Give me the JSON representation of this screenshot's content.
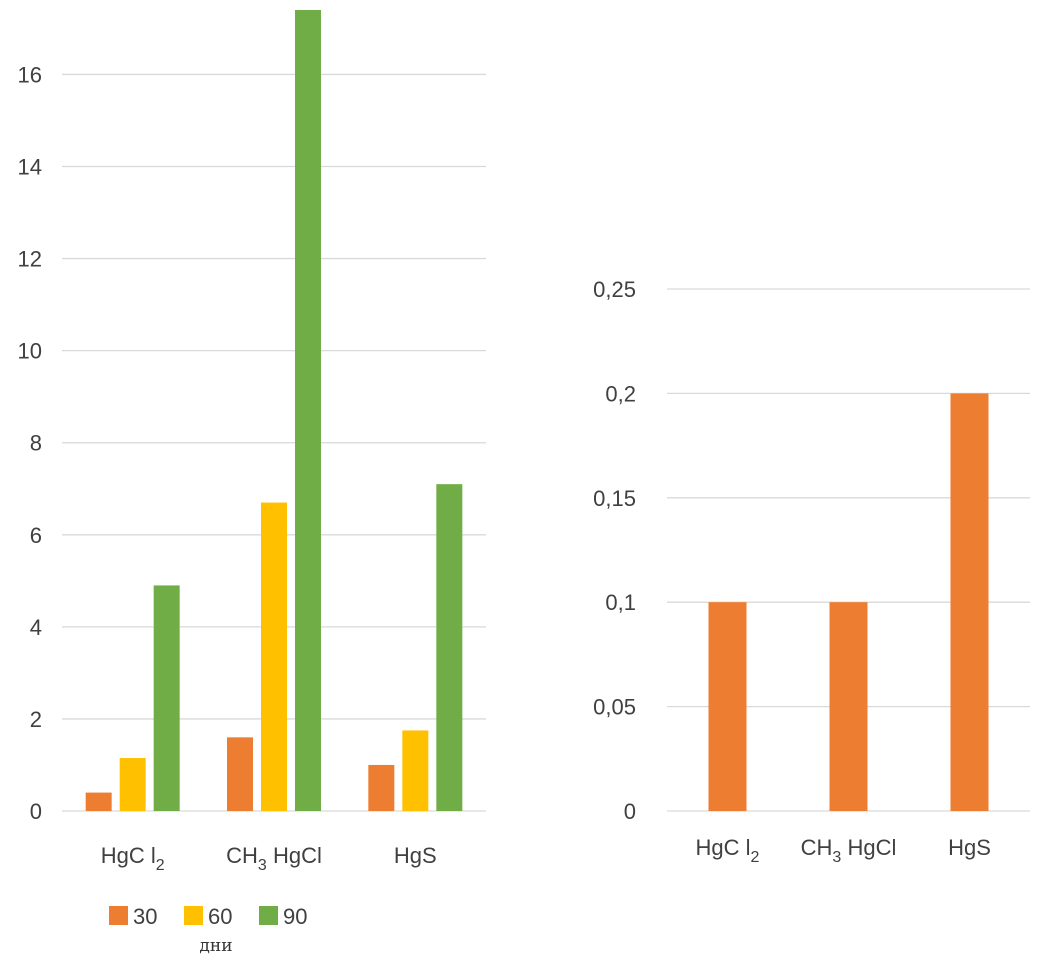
{
  "colors": {
    "s30": "#ED7D31",
    "s60": "#FFC000",
    "s90": "#70AD47",
    "single": "#ED7D31"
  },
  "legend_unit": "дни",
  "chart_data": [
    {
      "type": "bar",
      "categories": [
        "HgCl2",
        "CH3HgCl",
        "HgS"
      ],
      "category_labels": [
        {
          "main": "HgC l",
          "sub": "2",
          "tail": ""
        },
        {
          "main": "CH",
          "sub": "3",
          "tail": " HgCl"
        },
        {
          "main": "HgS",
          "sub": "",
          "tail": ""
        }
      ],
      "series": [
        {
          "name": "30",
          "color_key": "s30",
          "values": [
            0.4,
            1.6,
            1.0
          ]
        },
        {
          "name": "60",
          "color_key": "s60",
          "values": [
            1.15,
            6.7,
            1.75
          ]
        },
        {
          "name": "90",
          "color_key": "s90",
          "values": [
            4.9,
            17.4,
            7.1
          ]
        }
      ],
      "yticks": [
        "0",
        "2",
        "4",
        "6",
        "8",
        "10",
        "12",
        "14",
        "16"
      ],
      "ylim": [
        0,
        17.4
      ],
      "legend": "bottom",
      "grid": true
    },
    {
      "type": "bar",
      "categories": [
        "HgCl2",
        "CH3HgCl",
        "HgS"
      ],
      "category_labels": [
        {
          "main": "HgC l",
          "sub": "2",
          "tail": ""
        },
        {
          "main": "CH",
          "sub": "3",
          "tail": " HgCl"
        },
        {
          "main": "HgS",
          "sub": "",
          "tail": ""
        }
      ],
      "series": [
        {
          "color_key": "single",
          "values": [
            0.1,
            0.1,
            0.2
          ]
        }
      ],
      "yticks": [
        "0",
        "0,05",
        "0,1",
        "0,15",
        "0,2",
        "0,25"
      ],
      "ylim": [
        0,
        0.25
      ],
      "grid": true
    }
  ]
}
